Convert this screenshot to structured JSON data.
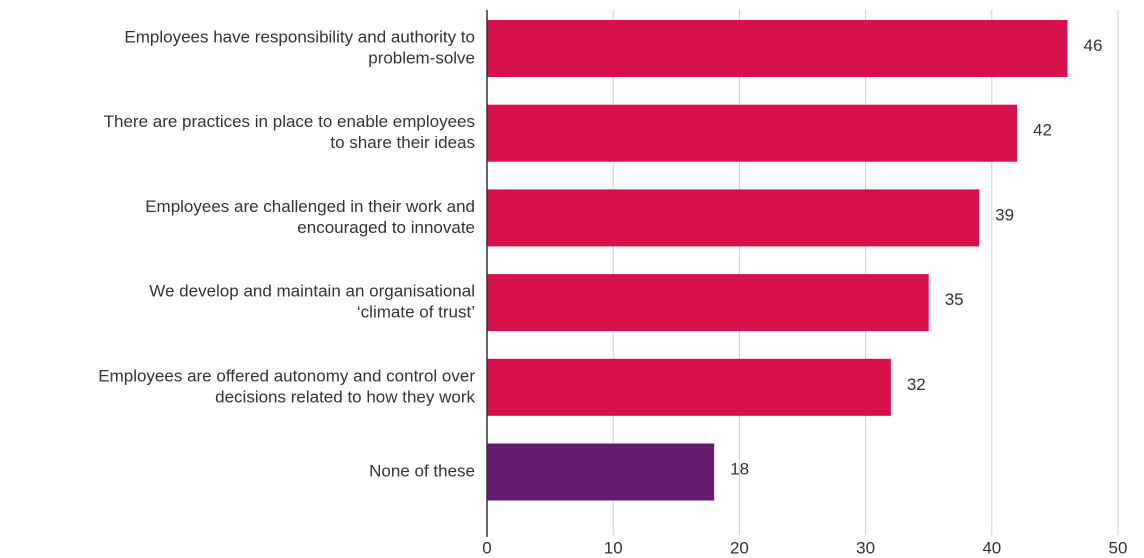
{
  "chart_data": {
    "type": "bar",
    "orientation": "horizontal",
    "categories": [
      [
        "Employees have responsibility and authority to",
        "problem-solve"
      ],
      [
        "There are practices in place to enable employees",
        "to share their ideas"
      ],
      [
        "Employees are challenged in their work and",
        "encouraged to innovate"
      ],
      [
        "We develop and maintain an organisational",
        "‘climate of trust’"
      ],
      [
        "Employees are offered autonomy and control over",
        "decisions related to how they work"
      ],
      [
        "None of these"
      ]
    ],
    "values": [
      46,
      42,
      39,
      35,
      32,
      18
    ],
    "colors": [
      "#d6104a",
      "#d6104a",
      "#d6104a",
      "#d6104a",
      "#d6104a",
      "#621b6e"
    ],
    "xlim": [
      0,
      50
    ],
    "xticks": [
      0,
      10,
      20,
      30,
      40,
      50
    ],
    "grid": true
  }
}
